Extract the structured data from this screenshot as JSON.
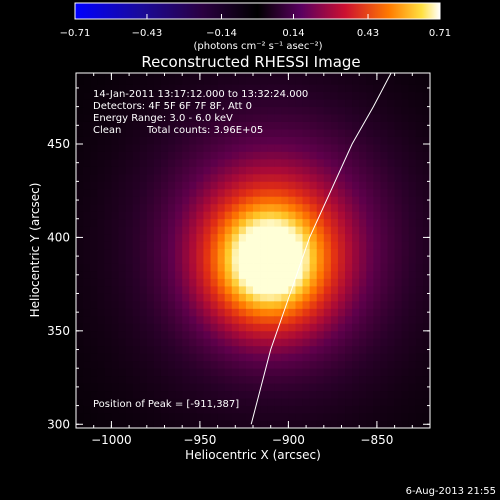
{
  "chart_data": {
    "type": "heatmap",
    "title": "Reconstructed RHESSI Image",
    "xlabel": "Heliocentric X (arcsec)",
    "ylabel": "Heliocentric Y (arcsec)",
    "xlim": [
      -1020,
      -820
    ],
    "ylim": [
      298,
      488
    ],
    "xticks": [
      -1000,
      -950,
      -900,
      -850
    ],
    "xtick_labels": [
      "−1000",
      "−950",
      "−900",
      "−850"
    ],
    "yticks": [
      300,
      350,
      400,
      450
    ],
    "ytick_labels": [
      "300",
      "350",
      "400",
      "450"
    ],
    "colorbar": {
      "min": -0.71,
      "max": 0.71,
      "ticks": [
        -0.71,
        -0.43,
        -0.14,
        0.14,
        0.43,
        0.71
      ],
      "tick_labels": [
        "−0.71",
        "−0.43",
        "−0.14",
        "0.14",
        "0.43",
        "0.71"
      ],
      "unit_label": "(photons cm⁻² s⁻¹ asec⁻²)"
    },
    "source": {
      "peak_x": -911,
      "peak_y": 387,
      "peak_value": 0.71
    },
    "limb_curve": [
      [
        -921,
        300
      ],
      [
        -910,
        340
      ],
      [
        -899,
        370
      ],
      [
        -888,
        400
      ],
      [
        -876,
        425
      ],
      [
        -864,
        450
      ],
      [
        -852,
        470
      ],
      [
        -842,
        488
      ]
    ],
    "annotations": {
      "time": "14-Jan-2011 13:17:12.000 to 13:32:24.000",
      "detectors": "Detectors: 4F 5F 6F 7F 8F, Att 0",
      "energy": "Energy Range: 3.0 - 6.0 keV",
      "clean": "Clean",
      "counts": "Total counts: 3.96E+05",
      "peak": "Position of Peak = [-911,387]"
    },
    "timestamp": "6-Aug-2013 21:55"
  }
}
